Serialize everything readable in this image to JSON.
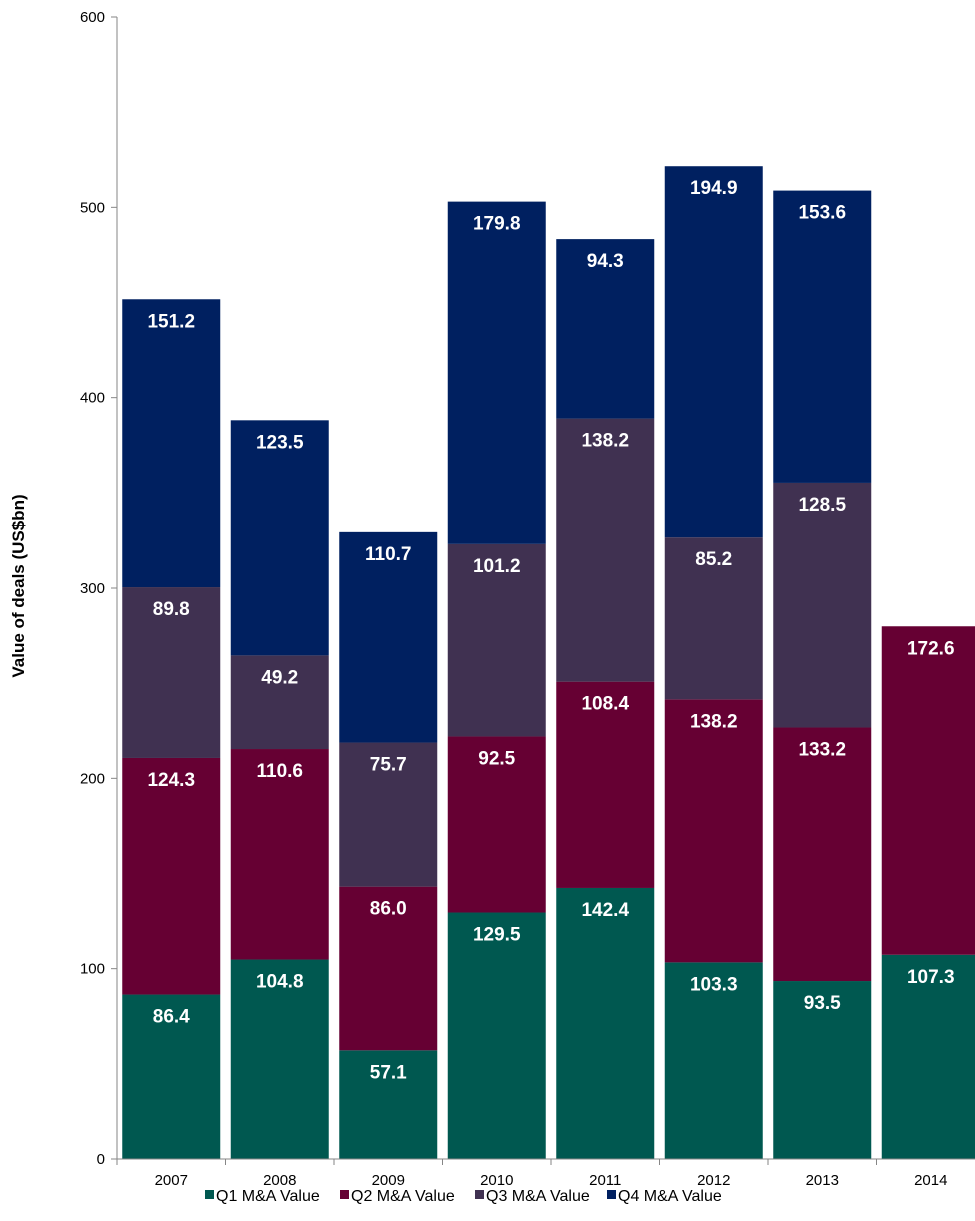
{
  "chart_data": {
    "type": "bar",
    "stacked": true,
    "title": "",
    "xlabel": "",
    "ylabel": "Value of deals (US$bn)",
    "ylim": [
      0,
      600
    ],
    "yticks": [
      0,
      100,
      200,
      300,
      400,
      500,
      600
    ],
    "grid": false,
    "legend_position": "bottom",
    "categories": [
      "2007",
      "2008",
      "2009",
      "2010",
      "2011",
      "2012",
      "2013",
      "2014"
    ],
    "series": [
      {
        "name": "Q1 M&A Value",
        "color": "#005850",
        "values": [
          86.4,
          104.8,
          57.1,
          129.5,
          142.4,
          103.3,
          93.5,
          107.3
        ]
      },
      {
        "name": "Q2 M&A Value",
        "color": "#660033",
        "values": [
          124.3,
          110.6,
          86.0,
          92.5,
          108.4,
          138.2,
          133.2,
          172.6
        ]
      },
      {
        "name": "Q3 M&A Value",
        "color": "#403151",
        "values": [
          89.8,
          49.2,
          75.7,
          101.2,
          138.2,
          85.2,
          128.5,
          null
        ]
      },
      {
        "name": "Q4 M&A Value",
        "color": "#002060",
        "values": [
          151.2,
          123.5,
          110.7,
          179.8,
          94.3,
          194.9,
          153.6,
          null
        ]
      }
    ]
  }
}
